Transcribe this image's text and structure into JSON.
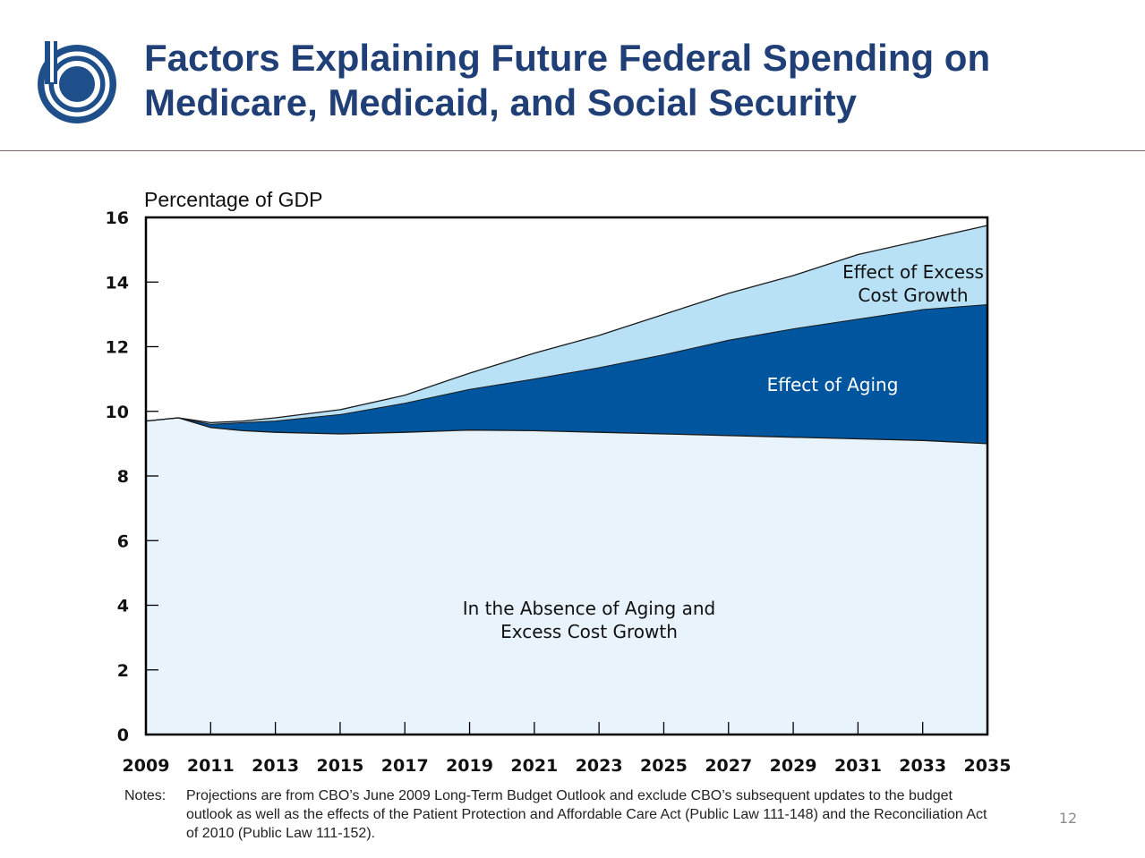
{
  "slide": {
    "title_line1": "Factors Explaining Future Federal Spending on",
    "title_line2": "Medicare, Medicaid, and Social Security",
    "page_number": "12"
  },
  "notes": {
    "label": "Notes:",
    "text": "Projections are from CBO’s June 2009 Long-Term Budget Outlook and exclude CBO’s subsequent updates to the budget outlook as well as the effects of the Patient Protection and Affordable Care Act (Public Law 111-148) and the Reconciliation Act of 2010 (Public Law 111-152)."
  },
  "colors": {
    "title": "#1f3f76",
    "logo": "#1f4f8b",
    "baseline_area": "#e8f3fc",
    "aging_area": "#00569e",
    "excess_area": "#b9e1f6"
  },
  "chart_data": {
    "type": "area",
    "stacked": true,
    "ylabel": "Percentage of GDP",
    "ylim": [
      0,
      16
    ],
    "yticks": [
      0,
      2,
      4,
      6,
      8,
      10,
      12,
      14,
      16
    ],
    "xlim": [
      2009,
      2035
    ],
    "xticks": [
      2009,
      2011,
      2013,
      2015,
      2017,
      2019,
      2021,
      2023,
      2025,
      2027,
      2029,
      2031,
      2033,
      2035
    ],
    "x": [
      2009,
      2010,
      2011,
      2012,
      2013,
      2015,
      2017,
      2019,
      2021,
      2023,
      2025,
      2027,
      2029,
      2031,
      2033,
      2035
    ],
    "series": [
      {
        "name": "In the Absence of Aging and Excess Cost Growth",
        "label_lines": [
          "In the Absence of Aging and",
          "Excess Cost Growth"
        ],
        "values": [
          9.7,
          9.8,
          9.5,
          9.4,
          9.35,
          9.3,
          9.35,
          9.42,
          9.4,
          9.35,
          9.3,
          9.25,
          9.2,
          9.15,
          9.1,
          9.0
        ]
      },
      {
        "name": "Effect of Aging",
        "label_lines": [
          "Effect of Aging"
        ],
        "values": [
          0.0,
          0.0,
          0.1,
          0.25,
          0.35,
          0.6,
          0.9,
          1.26,
          1.6,
          2.0,
          2.45,
          2.95,
          3.35,
          3.7,
          4.05,
          4.3
        ]
      },
      {
        "name": "Effect of Excess Cost Growth",
        "label_lines": [
          "Effect of Excess",
          "Cost Growth"
        ],
        "values": [
          0.0,
          0.0,
          0.05,
          0.05,
          0.1,
          0.15,
          0.25,
          0.5,
          0.8,
          1.0,
          1.25,
          1.45,
          1.65,
          2.0,
          2.15,
          2.45
        ]
      }
    ]
  }
}
